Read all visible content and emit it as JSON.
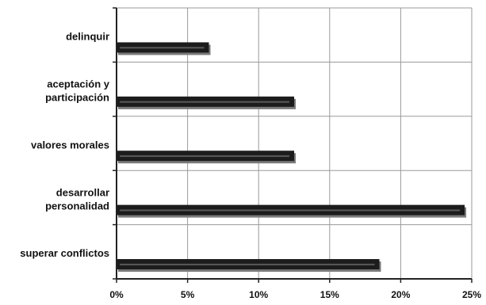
{
  "chart_data": {
    "type": "bar",
    "orientation": "horizontal",
    "title": "",
    "xlabel": "",
    "ylabel": "",
    "categories": [
      [
        "delinquir"
      ],
      [
        "aceptación y",
        "participación"
      ],
      [
        "valores morales"
      ],
      [
        "desarrollar",
        "personalidad"
      ],
      [
        "superar conflictos"
      ]
    ],
    "values": [
      6.5,
      12.5,
      12.5,
      24.5,
      18.5
    ],
    "x_ticks": [
      "0%",
      "5%",
      "10%",
      "15%",
      "20%",
      "25%"
    ],
    "xlim": [
      0,
      25
    ],
    "grid": true,
    "legend": false,
    "colors": {
      "bar": "#1c1c1c",
      "grid": "#9a9a9a",
      "text": "#111111"
    }
  }
}
